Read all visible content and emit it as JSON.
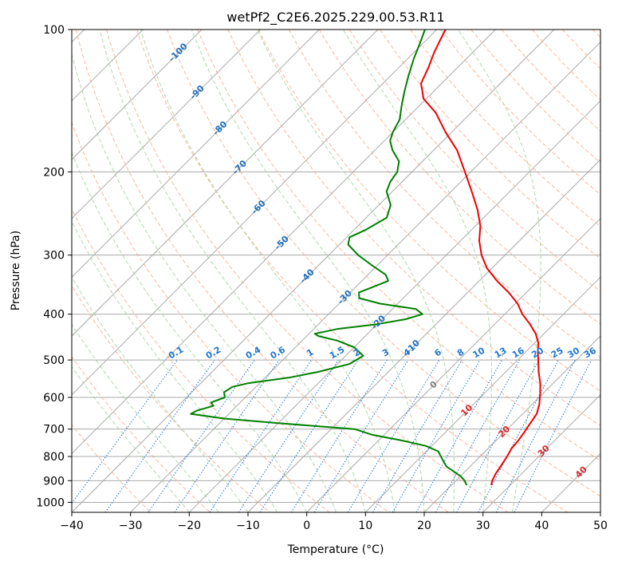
{
  "chart_data": {
    "type": "line",
    "title": "wetPf2_C2E6.2025.229.00.53.R11",
    "xlabel": "Temperature (°C)",
    "ylabel": "Pressure (hPa)",
    "xlim": [
      -40,
      50
    ],
    "ylim": [
      1050,
      100
    ],
    "y_scale": "log",
    "skew": "skew-T",
    "grid": true,
    "x_ticks": [
      -40,
      -30,
      -20,
      -10,
      0,
      10,
      20,
      30,
      40,
      50
    ],
    "y_ticks": [
      100,
      200,
      300,
      400,
      500,
      600,
      700,
      800,
      900,
      1000
    ],
    "series": [
      {
        "color": "#ee0000",
        "points": [
          {
            "p": 920,
            "t": 26.8
          },
          {
            "p": 900,
            "t": 26.2
          },
          {
            "p": 870,
            "t": 25.6
          },
          {
            "p": 840,
            "t": 25.2
          },
          {
            "p": 800,
            "t": 24.6
          },
          {
            "p": 770,
            "t": 24.0
          },
          {
            "p": 740,
            "t": 23.8
          },
          {
            "p": 710,
            "t": 23.4
          },
          {
            "p": 680,
            "t": 22.9
          },
          {
            "p": 650,
            "t": 22.4
          },
          {
            "p": 620,
            "t": 21.2
          },
          {
            "p": 590,
            "t": 19.6
          },
          {
            "p": 560,
            "t": 17.8
          },
          {
            "p": 530,
            "t": 15.6
          },
          {
            "p": 500,
            "t": 13.5
          },
          {
            "p": 480,
            "t": 12.0
          },
          {
            "p": 460,
            "t": 10.6
          },
          {
            "p": 440,
            "t": 8.6
          },
          {
            "p": 420,
            "t": 6.0
          },
          {
            "p": 400,
            "t": 3.0
          },
          {
            "p": 380,
            "t": 0.4
          },
          {
            "p": 360,
            "t": -3.0
          },
          {
            "p": 340,
            "t": -7.0
          },
          {
            "p": 320,
            "t": -10.8
          },
          {
            "p": 300,
            "t": -14.0
          },
          {
            "p": 280,
            "t": -16.8
          },
          {
            "p": 260,
            "t": -19.2
          },
          {
            "p": 240,
            "t": -22.5
          },
          {
            "p": 220,
            "t": -26.5
          },
          {
            "p": 200,
            "t": -31.0
          },
          {
            "p": 180,
            "t": -36.0
          },
          {
            "p": 165,
            "t": -41.0
          },
          {
            "p": 150,
            "t": -46.0
          },
          {
            "p": 140,
            "t": -50.5
          },
          {
            "p": 130,
            "t": -53.5
          },
          {
            "p": 120,
            "t": -55.0
          },
          {
            "p": 112,
            "t": -56.5
          },
          {
            "p": 106,
            "t": -57.5
          },
          {
            "p": 100,
            "t": -58.5
          }
        ]
      },
      {
        "color": "#008000",
        "points": [
          {
            "p": 920,
            "t": 22.6
          },
          {
            "p": 900,
            "t": 21.5
          },
          {
            "p": 880,
            "t": 20.0
          },
          {
            "p": 860,
            "t": 18.0
          },
          {
            "p": 840,
            "t": 16.0
          },
          {
            "p": 810,
            "t": 14.0
          },
          {
            "p": 780,
            "t": 12.0
          },
          {
            "p": 760,
            "t": 9.0
          },
          {
            "p": 740,
            "t": 4.0
          },
          {
            "p": 720,
            "t": -2.0
          },
          {
            "p": 700,
            "t": -6.0
          },
          {
            "p": 690,
            "t": -13.0
          },
          {
            "p": 680,
            "t": -20.0
          },
          {
            "p": 665,
            "t": -30.0
          },
          {
            "p": 650,
            "t": -36.5
          },
          {
            "p": 640,
            "t": -36.0
          },
          {
            "p": 625,
            "t": -34.0
          },
          {
            "p": 615,
            "t": -35.0
          },
          {
            "p": 600,
            "t": -33.5
          },
          {
            "p": 585,
            "t": -34.5
          },
          {
            "p": 570,
            "t": -34.0
          },
          {
            "p": 560,
            "t": -32.0
          },
          {
            "p": 545,
            "t": -26.0
          },
          {
            "p": 530,
            "t": -22.0
          },
          {
            "p": 510,
            "t": -18.0
          },
          {
            "p": 490,
            "t": -17.0
          },
          {
            "p": 470,
            "t": -20.0
          },
          {
            "p": 455,
            "t": -24.0
          },
          {
            "p": 445,
            "t": -28.0
          },
          {
            "p": 440,
            "t": -29.0
          },
          {
            "p": 430,
            "t": -26.0
          },
          {
            "p": 420,
            "t": -20.0
          },
          {
            "p": 410,
            "t": -16.0
          },
          {
            "p": 400,
            "t": -14.0
          },
          {
            "p": 390,
            "t": -16.0
          },
          {
            "p": 380,
            "t": -23.0
          },
          {
            "p": 370,
            "t": -27.5
          },
          {
            "p": 360,
            "t": -28.5
          },
          {
            "p": 350,
            "t": -27.0
          },
          {
            "p": 340,
            "t": -25.5
          },
          {
            "p": 330,
            "t": -27.0
          },
          {
            "p": 315,
            "t": -31.0
          },
          {
            "p": 300,
            "t": -35.0
          },
          {
            "p": 285,
            "t": -38.5
          },
          {
            "p": 275,
            "t": -39.5
          },
          {
            "p": 265,
            "t": -38.0
          },
          {
            "p": 250,
            "t": -36.5
          },
          {
            "p": 235,
            "t": -38.0
          },
          {
            "p": 220,
            "t": -41.0
          },
          {
            "p": 210,
            "t": -42.0
          },
          {
            "p": 200,
            "t": -42.5
          },
          {
            "p": 190,
            "t": -44.0
          },
          {
            "p": 180,
            "t": -47.0
          },
          {
            "p": 172,
            "t": -49.0
          },
          {
            "p": 165,
            "t": -50.0
          },
          {
            "p": 155,
            "t": -51.0
          },
          {
            "p": 145,
            "t": -53.0
          },
          {
            "p": 135,
            "t": -55.0
          },
          {
            "p": 125,
            "t": -57.0
          },
          {
            "p": 115,
            "t": -59.0
          },
          {
            "p": 107,
            "t": -60.5
          },
          {
            "p": 100,
            "t": -62.0
          }
        ]
      }
    ],
    "background_lines": {
      "dry_adiabats_theta_C": [
        -30,
        -20,
        -10,
        0,
        10,
        20,
        30,
        40,
        50,
        60,
        70,
        80,
        90,
        100,
        110,
        120,
        130,
        140,
        150,
        160,
        170,
        180,
        190,
        200
      ],
      "moist_adiabats_C": [
        -20,
        -15,
        -10,
        -5,
        0,
        5,
        10,
        15,
        20,
        25,
        30,
        35
      ],
      "mixing_ratios_gkg": [
        0.1,
        0.2,
        0.4,
        0.6,
        1,
        1.5,
        2,
        3,
        4,
        6,
        8,
        10,
        13,
        16,
        20,
        25,
        30,
        36
      ],
      "mixing_ratio_labels": [
        "0.1",
        "0.2",
        "0.4",
        "0.6",
        "1",
        "1.5",
        "2",
        "3",
        "4",
        "6",
        "8",
        "10",
        "13",
        "16",
        "20",
        "25",
        "30",
        "36"
      ],
      "isotherm_labels": [
        "-100",
        "-90",
        "-80",
        "-70",
        "-60",
        "-50",
        "-40",
        "-30",
        "-20",
        "-10",
        "0",
        "10",
        "20",
        "30",
        "40"
      ],
      "colors": {
        "isotherm": "#a9a9a9",
        "dry_adiabat": "#f4a582",
        "moist_adiabat": "#a6d4a0",
        "mixing_ratio": "#1f78d1",
        "isotherm_label_cold": "#1f6fbf",
        "isotherm_label_warm": "#d62728"
      }
    }
  }
}
